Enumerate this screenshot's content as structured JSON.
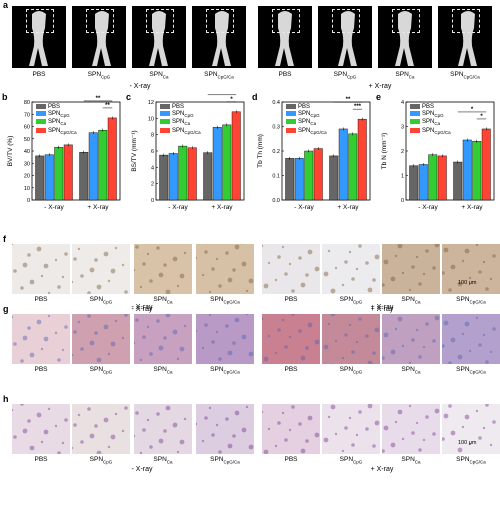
{
  "panel_letters": [
    "a",
    "b",
    "c",
    "d",
    "e",
    "f",
    "g",
    "h"
  ],
  "groups": [
    "PBS",
    "SPN_CpG",
    "SPN_Ca",
    "SPN_CpG/Ca"
  ],
  "conditions": [
    "- X-ray",
    "+ X-ray"
  ],
  "scale_bar": "100 μm",
  "colors": {
    "PBS": "#666666",
    "SPN_CpG": "#3399ff",
    "SPN_Ca": "#33cc33",
    "SPN_CpG/Ca": "#ff4433"
  },
  "chart_data": [
    {
      "type": "bar",
      "panel": "b",
      "ylabel": "BV/TV (%)",
      "categories": [
        "- X-ray",
        "+ X-ray"
      ],
      "ylim": [
        0,
        80
      ],
      "yticks": [
        0,
        10,
        20,
        30,
        40,
        50,
        60,
        70,
        80
      ],
      "series": [
        {
          "name": "PBS",
          "values": [
            36,
            39
          ]
        },
        {
          "name": "SPN_CpG",
          "values": [
            37,
            55
          ]
        },
        {
          "name": "SPN_Ca",
          "values": [
            43,
            57
          ]
        },
        {
          "name": "SPN_CpG/Ca",
          "values": [
            45,
            67
          ]
        }
      ],
      "significance": [
        "**",
        "**"
      ]
    },
    {
      "type": "bar",
      "panel": "c",
      "ylabel": "BS/TV (mm⁻¹)",
      "categories": [
        "- X-ray",
        "+ X-ray"
      ],
      "ylim": [
        0,
        12
      ],
      "yticks": [
        0,
        2,
        4,
        6,
        8,
        10,
        12
      ],
      "series": [
        {
          "name": "PBS",
          "values": [
            5.5,
            5.8
          ]
        },
        {
          "name": "SPN_CpG",
          "values": [
            5.7,
            8.9
          ]
        },
        {
          "name": "SPN_Ca",
          "values": [
            6.6,
            9.2
          ]
        },
        {
          "name": "SPN_CpG/Ca",
          "values": [
            6.4,
            10.8
          ]
        }
      ],
      "significance": [
        "**",
        "*"
      ]
    },
    {
      "type": "bar",
      "panel": "d",
      "ylabel": "Tb Th (mm)",
      "categories": [
        "- X-ray",
        "+ X-ray"
      ],
      "ylim": [
        0,
        0.4
      ],
      "yticks": [
        0.0,
        0.1,
        0.2,
        0.3,
        0.4
      ],
      "series": [
        {
          "name": "PBS",
          "values": [
            0.17,
            0.18
          ]
        },
        {
          "name": "SPN_CpG",
          "values": [
            0.17,
            0.29
          ]
        },
        {
          "name": "SPN_Ca",
          "values": [
            0.2,
            0.27
          ]
        },
        {
          "name": "SPN_CpG/Ca",
          "values": [
            0.21,
            0.33
          ]
        }
      ],
      "significance": [
        "**",
        "***"
      ]
    },
    {
      "type": "bar",
      "panel": "e",
      "ylabel": "Tb N (mm⁻¹)",
      "categories": [
        "- X-ray",
        "+ X-ray"
      ],
      "ylim": [
        0,
        4
      ],
      "yticks": [
        0,
        1,
        2,
        3,
        4
      ],
      "series": [
        {
          "name": "PBS",
          "values": [
            1.4,
            1.55
          ]
        },
        {
          "name": "SPN_CpG",
          "values": [
            1.45,
            2.45
          ]
        },
        {
          "name": "SPN_Ca",
          "values": [
            1.85,
            2.4
          ]
        },
        {
          "name": "SPN_CpG/Ca",
          "values": [
            1.8,
            2.9
          ]
        }
      ],
      "significance": [
        "*",
        "*"
      ]
    }
  ]
}
